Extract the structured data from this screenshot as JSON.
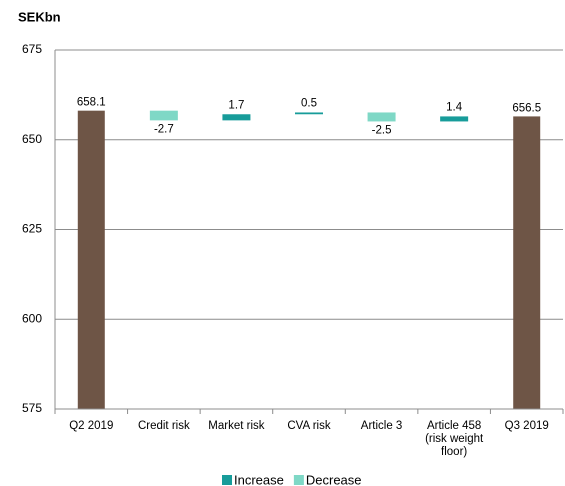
{
  "chart_data": {
    "type": "waterfall",
    "y_label": "SEKbn",
    "categories": [
      "Q2 2019",
      "Credit risk",
      "Market risk",
      "CVA risk",
      "Article 3",
      "Article 458 (risk weight floor)",
      "Q3 2019"
    ],
    "values": [
      658.1,
      -2.7,
      1.7,
      0.5,
      -2.5,
      1.4,
      656.5
    ],
    "total_color": "#6e5546",
    "increase_color": "#179c9a",
    "decrease_color": "#7fd8c6",
    "legend": [
      {
        "name": "Increase",
        "color": "#179c9a"
      },
      {
        "name": "Decrease",
        "color": "#7fd8c6"
      }
    ],
    "ylim": [
      575,
      675
    ],
    "yticks": [
      575,
      600,
      625,
      650,
      675
    ],
    "grid": true
  }
}
